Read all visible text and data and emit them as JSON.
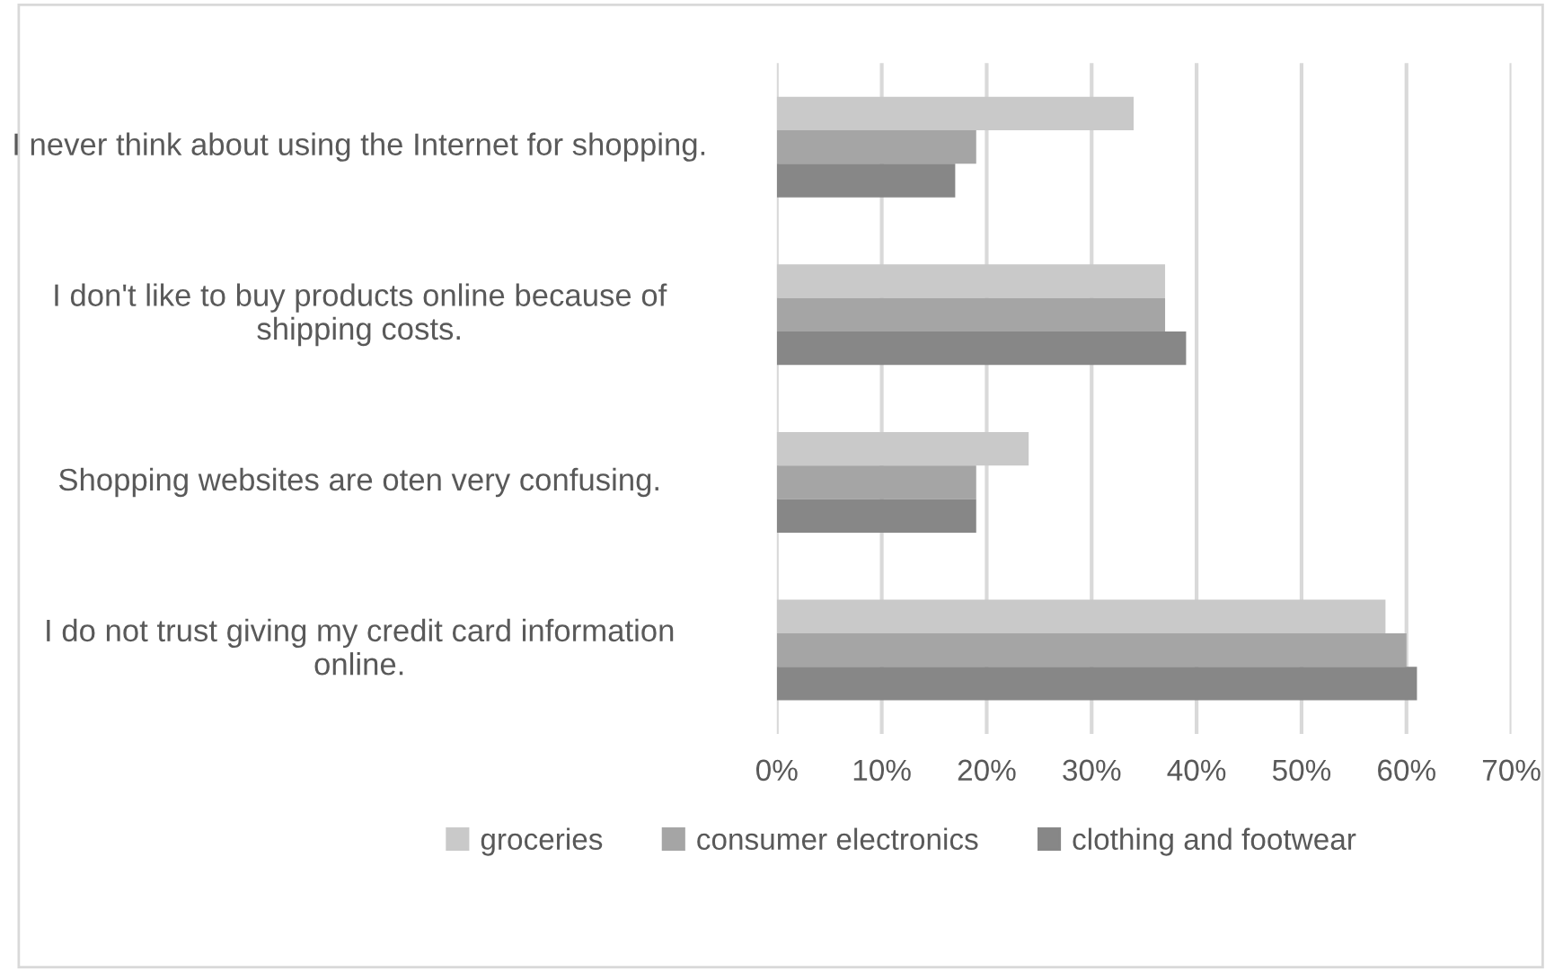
{
  "chart_data": {
    "type": "bar",
    "orientation": "horizontal",
    "categories": [
      "I never think about using the Internet for shopping.",
      "I don't like to buy products online because of shipping costs.",
      "Shopping websites are oten very confusing.",
      "I do not trust giving my credit card information online."
    ],
    "series": [
      {
        "name": "groceries",
        "color": "#c9c9c9",
        "values": [
          34,
          37,
          24,
          58
        ]
      },
      {
        "name": "consumer electronics",
        "color": "#a5a5a5",
        "values": [
          19,
          37,
          19,
          60
        ]
      },
      {
        "name": "clothing and footwear",
        "color": "#878787",
        "values": [
          17,
          39,
          19,
          61
        ]
      }
    ],
    "xlim": [
      0,
      70
    ],
    "xticks": [
      {
        "value": 0,
        "label": "0%"
      },
      {
        "value": 10,
        "label": "10%"
      },
      {
        "value": 20,
        "label": "20%"
      },
      {
        "value": 30,
        "label": "30%"
      },
      {
        "value": 40,
        "label": "40%"
      },
      {
        "value": 50,
        "label": "50%"
      },
      {
        "value": 60,
        "label": "60%"
      },
      {
        "value": 70,
        "label": "70%"
      }
    ],
    "grid": "x",
    "legend": "bottom"
  }
}
